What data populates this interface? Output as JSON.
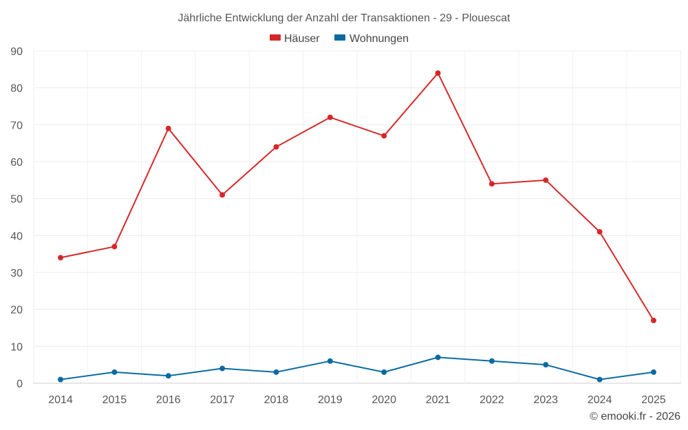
{
  "chart_data": {
    "type": "line",
    "title": "Jährliche Entwicklung der Anzahl der Transaktionen - 29 - Plouescat",
    "categories": [
      "2014",
      "2015",
      "2016",
      "2017",
      "2018",
      "2019",
      "2020",
      "2021",
      "2022",
      "2023",
      "2024",
      "2025"
    ],
    "series": [
      {
        "name": "Häuser",
        "color": "#d62728",
        "values": [
          34,
          37,
          69,
          51,
          64,
          72,
          67,
          84,
          54,
          55,
          41,
          17
        ]
      },
      {
        "name": "Wohnungen",
        "color": "#0a6aa1",
        "values": [
          1,
          3,
          2,
          4,
          3,
          6,
          3,
          7,
          6,
          5,
          1,
          3
        ]
      }
    ],
    "ylim": [
      0,
      90
    ],
    "yticks": [
      0,
      10,
      20,
      30,
      40,
      50,
      60,
      70,
      80,
      90
    ],
    "grid": true,
    "legend_position": "top-center",
    "xlabel": "",
    "ylabel": ""
  },
  "credit": "© emooki.fr - 2026"
}
